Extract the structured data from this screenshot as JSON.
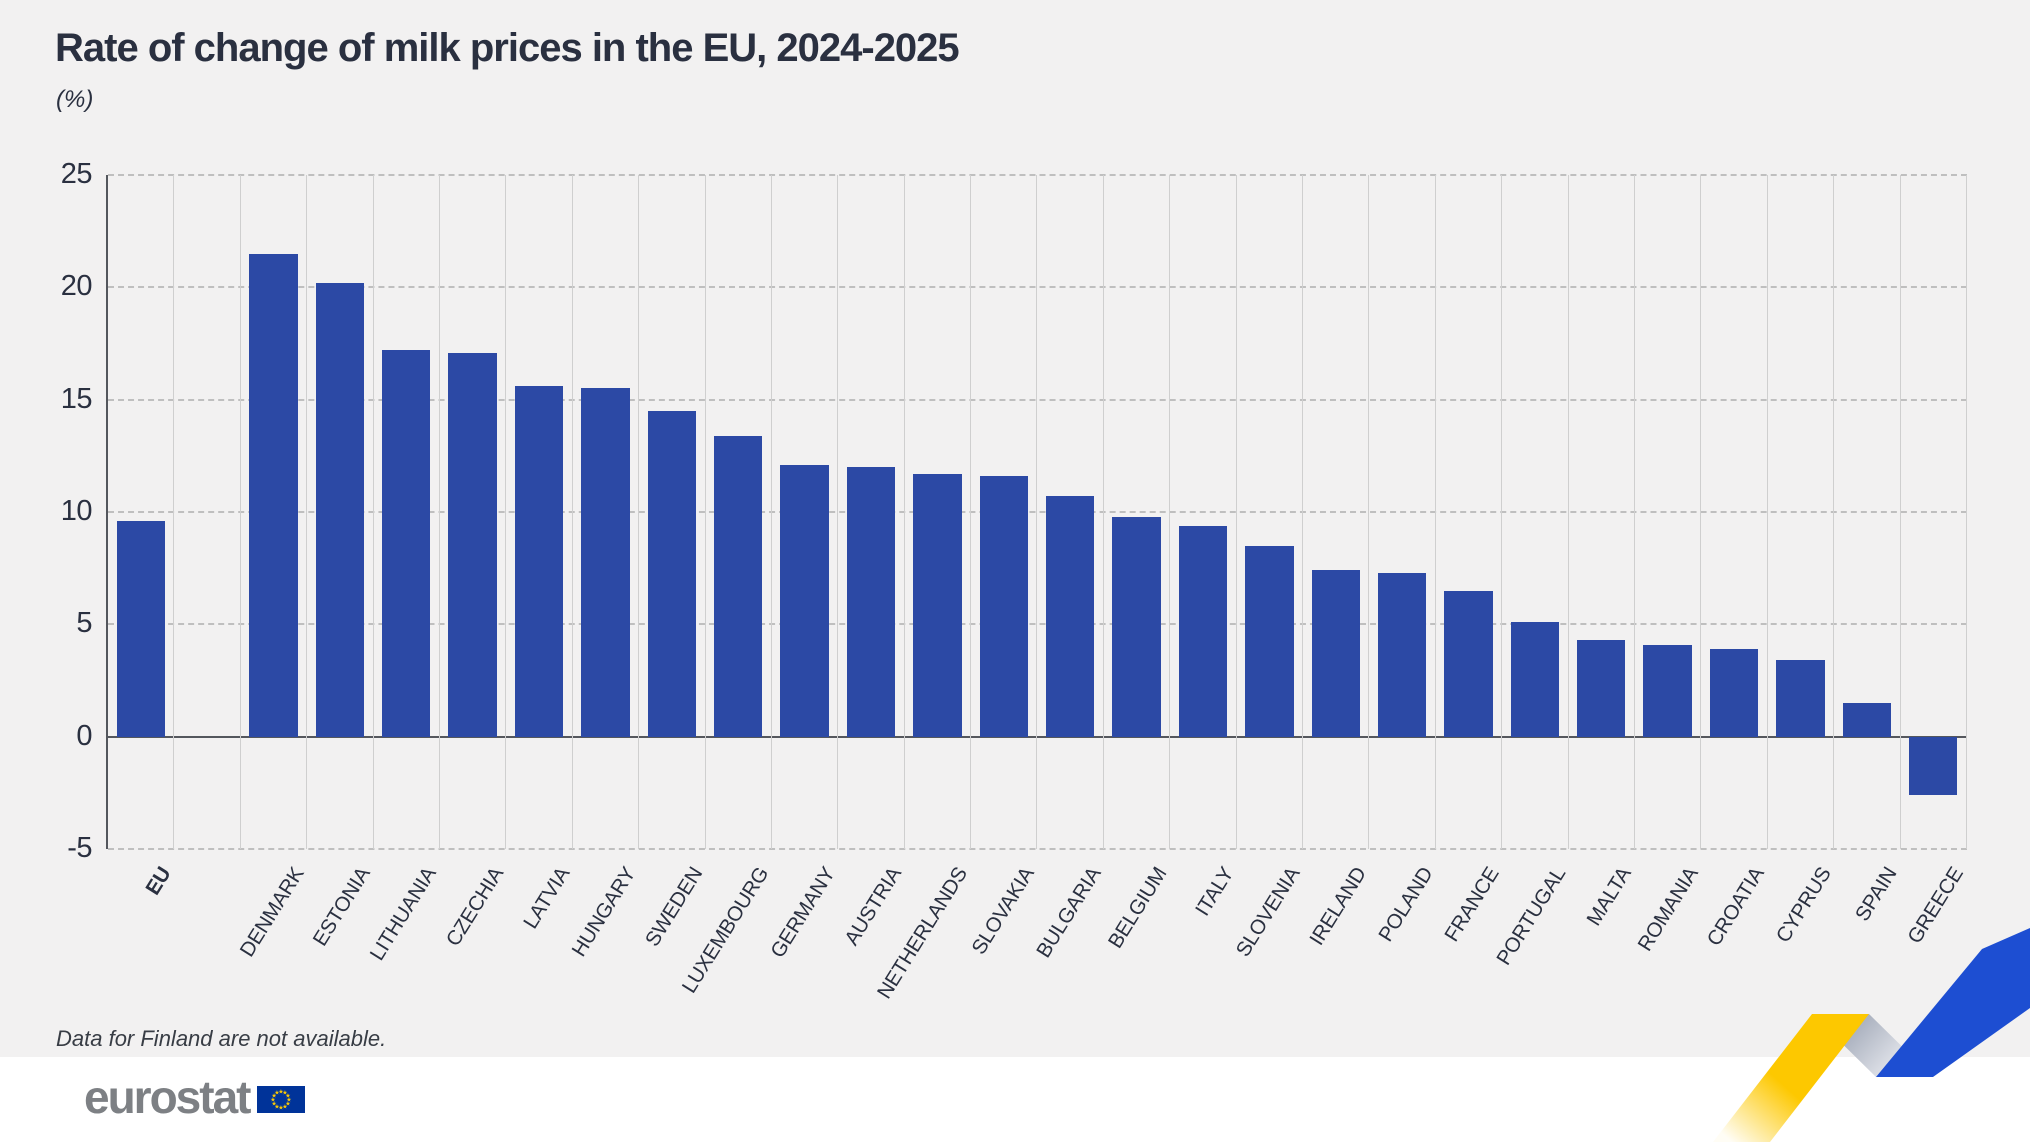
{
  "header": {
    "title": "Rate of change of milk prices in the EU, 2024-2025",
    "unit_label": "(%)"
  },
  "footnote": "Data for Finland are not available.",
  "logo": {
    "text": "eurostat",
    "flag_icon": "eu-flag-icon"
  },
  "colors": {
    "bar": "#2c49a5",
    "background": "#f2f1f1",
    "footer_band": "#ffffff",
    "text_dark": "#2a3040",
    "logo_gray": "#7d8084",
    "flag_blue": "#003399",
    "star_yellow": "#ffcc00",
    "ribbon_yellow": "#fdc800",
    "ribbon_blue": "#1d4ed2"
  },
  "chart_data": {
    "type": "bar",
    "title": "Rate of change of milk prices in the EU, 2024-2025",
    "xlabel": "",
    "ylabel": "(%)",
    "ylim": [
      -5,
      25
    ],
    "yticks": [
      25,
      20,
      15,
      10,
      5,
      0,
      -5
    ],
    "grid": "horizontal dashed gridlines + vertical column separators, zero baseline solid",
    "legend": "none",
    "layout": {
      "gap_after_first_category": true,
      "bar_color": "#2c49a5"
    },
    "categories": [
      "EU",
      "DENMARK",
      "ESTONIA",
      "LITHUANIA",
      "CZECHIA",
      "LATVIA",
      "HUNGARY",
      "SWEDEN",
      "LUXEMBOURG",
      "GERMANY",
      "AUSTRIA",
      "NETHERLANDS",
      "SLOVAKIA",
      "BULGARIA",
      "BELGIUM",
      "ITALY",
      "SLOVENIA",
      "IRELAND",
      "POLAND",
      "FRANCE",
      "PORTUGAL",
      "MALTA",
      "ROMANIA",
      "CROATIA",
      "CYPRUS",
      "SPAIN",
      "GREECE"
    ],
    "values": [
      9.6,
      21.5,
      20.2,
      17.2,
      17.1,
      15.6,
      15.5,
      14.5,
      13.4,
      12.1,
      12.0,
      11.7,
      11.6,
      10.7,
      9.8,
      9.4,
      8.5,
      7.4,
      7.3,
      6.5,
      5.1,
      4.3,
      4.1,
      3.9,
      3.4,
      1.5,
      -2.6
    ]
  }
}
